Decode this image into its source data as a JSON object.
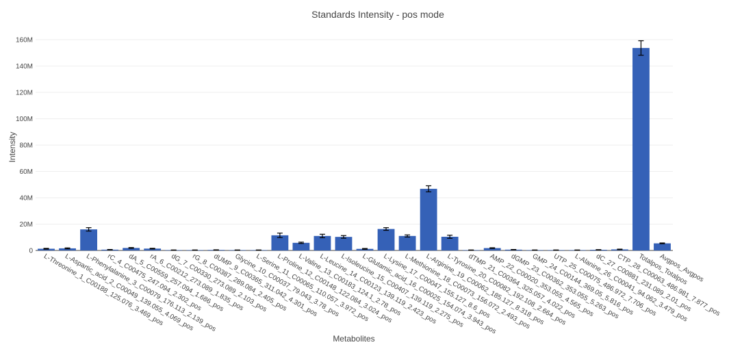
{
  "chart_data": {
    "type": "bar",
    "title": "Standards Intensity - pos mode",
    "xlabel": "Metabolites",
    "ylabel": "Intensity",
    "ylim": [
      0,
      160000000
    ],
    "yticks": [
      0,
      20000000,
      40000000,
      60000000,
      80000000,
      100000000,
      120000000,
      140000000,
      160000000
    ],
    "ytick_labels": [
      "0",
      "20M",
      "40M",
      "60M",
      "80M",
      "100M",
      "120M",
      "140M",
      "160M"
    ],
    "grid": true,
    "error_bars": true,
    "colors": {
      "bar": "#3561b7",
      "grid": "#eeeeee",
      "text": "#444444",
      "error": "#000000"
    },
    "categories": [
      "L-Threonine_1_C00188_125.076_3.469_pos",
      "L-Aspartic_acid_2_C00049_139.055_4.069_pos",
      "L-Phenylalanine_3_C00079_176.113_2.139_pos",
      "rC_4_C00475_247.094_2.302_pos",
      "dA_5_C00559_257.094_1.686_pos",
      "rA_6_C00212_273.089_1.835_pos",
      "dG_7_C00330_273.089_2.103_pos",
      "rG_8_C00387_289.084_2.405_pos",
      "dUMP_9_C00365_311.042_4.301_pos",
      "Glycine_10_C00037_79.043_3.78_pos",
      "L-Serine_11_C00065_110.057_3.972_pos",
      "L-Proline_12_C00148_122.084_3.024_pos",
      "L-Valine_13_C00183_124.1_2.78_pos",
      "L-Leucine_14_C00123_139.119_2.423_pos",
      "L-Isoleucine_15_C00407_139.119_2.275_pos",
      "L-Glutamic_acid_16_C00025_154.074_3.943_pos",
      "L-Lysine_17_C00047_155.127_8.6_pos",
      "L-Methionine_18_C00073_156.072_2.493_pos",
      "L-Arginine_19_C00062_185.127_8.318_pos",
      "L-Tyrosine_20_C00082_192.108_2.664_pos",
      "dTMP_21_C00364_325.057_4.022_pos",
      "AMP_22_C00020_353.055_4.565_pos",
      "dGMP_23_C00362_353.055_5.263_pos",
      "GMP_24_C00144_369.05_5.816_pos",
      "UTP_25_C00075_486.972_7.706_pos",
      "L-Alanine_26_C00041_94.062_3.479_pos",
      "dC_27_C00881_231.089_2.01_pos",
      "CTP_28_C00063_486.981_7.877_pos",
      "Totalpos_Totalpos",
      "Avgpos_Avgpos"
    ],
    "series": [
      {
        "values": [
          1300000,
          1600000,
          16000000,
          600000,
          1900000,
          1400000,
          300000,
          300000,
          400000,
          300000,
          300000,
          11500000,
          5800000,
          11000000,
          10300000,
          1200000,
          16300000,
          11000000,
          46800000,
          10400000,
          300000,
          1800000,
          600000,
          300000,
          300000,
          300000,
          500000,
          800000,
          153700000,
          5400000
        ],
        "errors": [
          300000,
          350000,
          1300000,
          150000,
          300000,
          250000,
          80000,
          80000,
          100000,
          80000,
          80000,
          1700000,
          500000,
          1300000,
          1000000,
          300000,
          1000000,
          800000,
          2300000,
          1200000,
          80000,
          250000,
          150000,
          80000,
          80000,
          80000,
          120000,
          200000,
          5500000,
          300000
        ]
      }
    ]
  }
}
